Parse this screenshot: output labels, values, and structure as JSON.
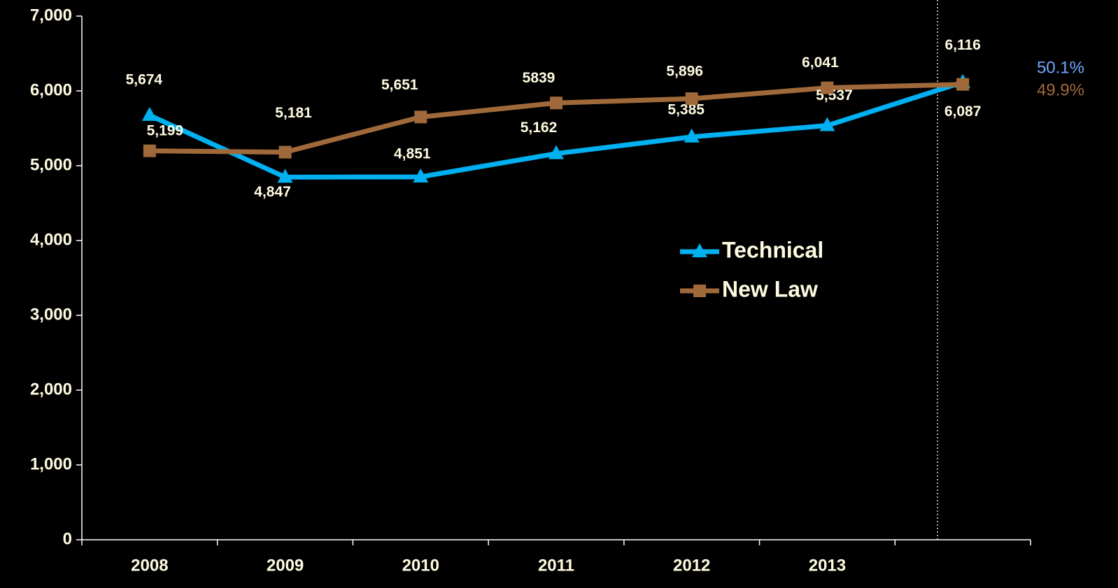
{
  "chart_data": {
    "type": "line",
    "categories": [
      "2008",
      "2009",
      "2010",
      "2011",
      "2012",
      "2013",
      null
    ],
    "series": [
      {
        "name": "Technical",
        "color": "#00b0f0",
        "marker": "triangle",
        "values": [
          5674,
          4847,
          4851,
          5162,
          5385,
          5537,
          6116
        ],
        "value_labels": [
          "5,674",
          "4,847",
          "4,851",
          "5,162",
          "5,385",
          "5,537",
          "6,116"
        ]
      },
      {
        "name": "New Law",
        "color": "#a0693a",
        "marker": "square",
        "values": [
          5199,
          5181,
          5651,
          5839,
          5896,
          6041,
          6087
        ],
        "value_labels": [
          "5,199",
          "5,181",
          "5,651",
          "5839",
          "5,896",
          "6,041",
          "6,087"
        ]
      }
    ],
    "ylim": [
      0,
      7000
    ],
    "yticks": [
      0,
      {
        "value": 1000,
        "label": "1,000"
      },
      {
        "value": 2000,
        "label": "2,000"
      },
      {
        "value": 3000,
        "label": "3,000"
      },
      {
        "value": 4000,
        "label": "4,000"
      },
      {
        "value": 5000,
        "label": "5,000"
      },
      {
        "value": 6000,
        "label": "6,000"
      },
      {
        "value": 7000,
        "label": "7,000"
      }
    ],
    "annotations": [
      {
        "text": "50.1%",
        "color": "#6fa8ff"
      },
      {
        "text": "49.9%",
        "color": "#a0693a"
      }
    ]
  }
}
